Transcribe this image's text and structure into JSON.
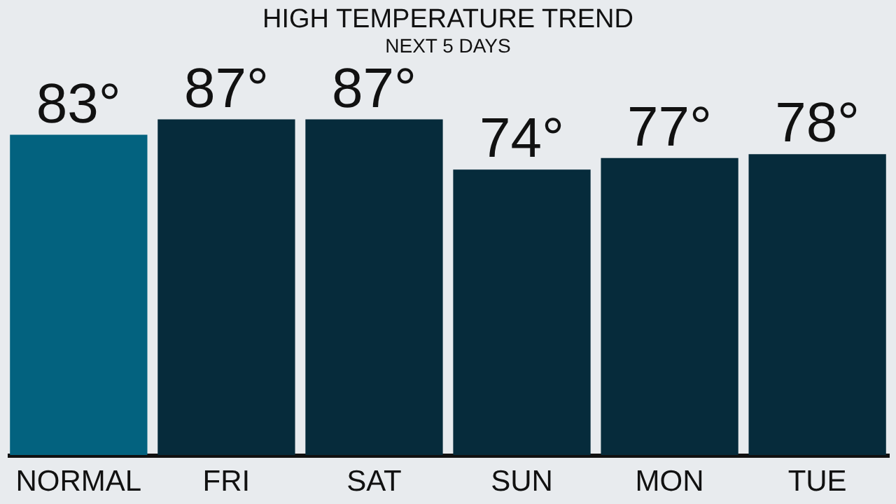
{
  "chart_data": {
    "type": "bar",
    "title": "HIGH TEMPERATURE TREND",
    "subtitle": "NEXT 5 DAYS",
    "categories": [
      "NORMAL",
      "FRI",
      "SAT",
      "SUN",
      "MON",
      "TUE"
    ],
    "values": [
      83,
      87,
      87,
      74,
      77,
      78
    ],
    "colors": [
      "#03627f",
      "#062b3b",
      "#062b3b",
      "#062b3b",
      "#062b3b",
      "#062b3b"
    ],
    "value_labels": [
      "83°",
      "87°",
      "87°",
      "74°",
      "77°",
      "78°"
    ],
    "tick_labels": "x",
    "grid": false
  }
}
